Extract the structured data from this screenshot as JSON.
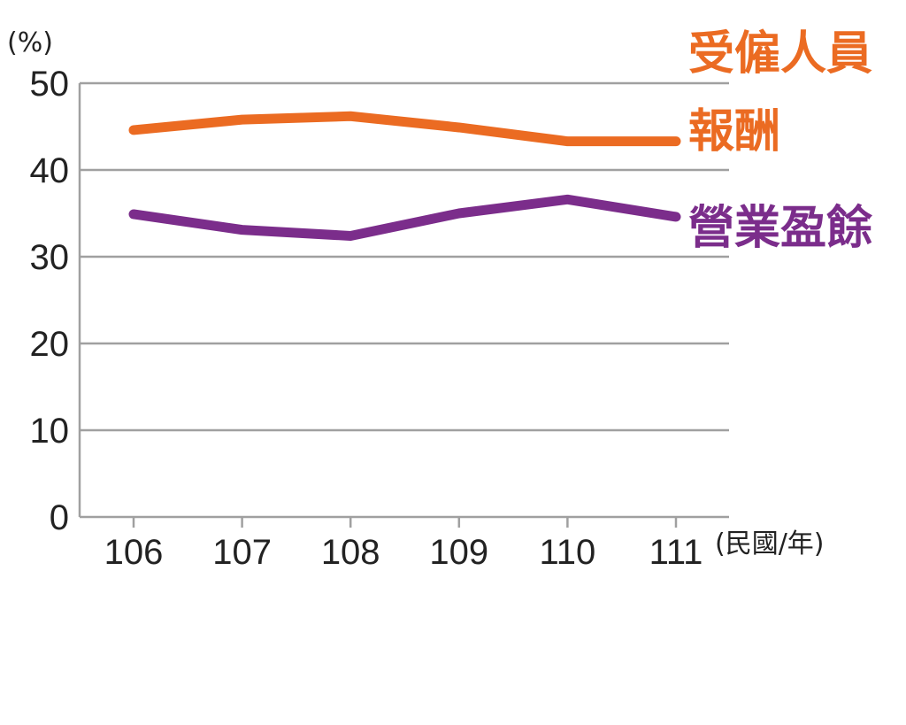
{
  "chart_data": {
    "type": "line",
    "title": "",
    "ylabel": "(%)",
    "xlabel": "(民國/年)",
    "categories": [
      "106",
      "107",
      "108",
      "109",
      "110",
      "111"
    ],
    "ylim": [
      0,
      50
    ],
    "yticks": [
      "0",
      "10",
      "20",
      "30",
      "40",
      "50"
    ],
    "grid": true,
    "series": [
      {
        "name": "受僱人員報酬",
        "name_lines": [
          "受僱人員",
          "報酬"
        ],
        "color": "#EB6B22",
        "values": [
          44.6,
          45.8,
          46.2,
          44.9,
          43.3,
          43.3
        ]
      },
      {
        "name": "營業盈餘",
        "name_lines": [
          "營業盈餘"
        ],
        "color": "#7B2D8B",
        "values": [
          34.9,
          33.1,
          32.4,
          35.0,
          36.6,
          34.6
        ]
      }
    ]
  }
}
